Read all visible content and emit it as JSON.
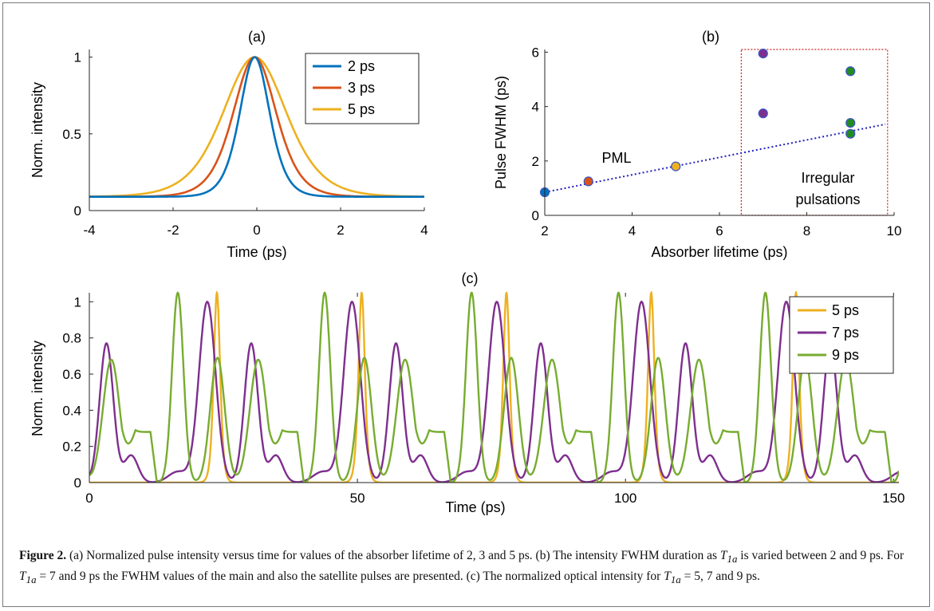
{
  "panels": {
    "a": {
      "label": "(a)",
      "xlabel": "Time (ps)",
      "ylabel": "Norm. intensity",
      "xlim": [
        -4,
        4
      ],
      "ylim": [
        0,
        1.05
      ],
      "xticks": [
        -4,
        -2,
        0,
        2,
        4
      ],
      "yticks": [
        0,
        0.5,
        1
      ],
      "ytick_labels": [
        "0",
        "0.5",
        "1"
      ],
      "legend": [
        {
          "name": "2 ps",
          "color": "#0072bd"
        },
        {
          "name": "3 ps",
          "color": "#d95319"
        },
        {
          "name": "5 ps",
          "color": "#edb120"
        }
      ]
    },
    "b": {
      "label": "(b)",
      "xlabel": "Absorber lifetime (ps)",
      "ylabel": "Pulse FWHM (ps)",
      "xlim": [
        2,
        10
      ],
      "ylim": [
        0,
        6.1
      ],
      "xticks": [
        2,
        4,
        6,
        8,
        10
      ],
      "yticks": [
        0,
        2,
        4,
        6
      ],
      "annotation_pml": "PML",
      "annotation_irregular": [
        "Irregular",
        "pulsations"
      ]
    },
    "c": {
      "label": "(c)",
      "xlabel": "Time (ps)",
      "ylabel": "Norm. intensity",
      "xlim": [
        0,
        151
      ],
      "ylim": [
        0,
        1.05
      ],
      "xticks": [
        0,
        50,
        100,
        150
      ],
      "yticks": [
        0,
        0.2,
        0.4,
        0.6,
        0.8,
        1
      ],
      "ytick_labels": [
        "0",
        "0.2",
        "0.4",
        "0.6",
        "0.8",
        "1"
      ],
      "legend": [
        {
          "name": "5 ps",
          "color": "#edb120"
        },
        {
          "name": "7 ps",
          "color": "#7e2f8e"
        },
        {
          "name": "9 ps",
          "color": "#77ac30"
        }
      ]
    }
  },
  "chart_data": [
    {
      "type": "line",
      "panel": "a",
      "x_range": [
        -4,
        4
      ],
      "series": [
        {
          "name": "2 ps",
          "color": "#0072bd",
          "fwhm": 0.85,
          "baseline": 0.09
        },
        {
          "name": "3 ps",
          "color": "#d95319",
          "fwhm": 1.22,
          "baseline": 0.09
        },
        {
          "name": "5 ps",
          "color": "#edb120",
          "fwhm": 1.8,
          "baseline": 0.09
        }
      ]
    },
    {
      "type": "scatter",
      "panel": "b",
      "points": [
        {
          "x": 2,
          "y": 0.85,
          "color": "#0072bd"
        },
        {
          "x": 3,
          "y": 1.25,
          "color": "#d95319"
        },
        {
          "x": 5,
          "y": 1.8,
          "color": "#edb120"
        },
        {
          "x": 7,
          "y": 5.95,
          "color": "#7e2f8e"
        },
        {
          "x": 7,
          "y": 3.75,
          "color": "#7e2f8e"
        },
        {
          "x": 9,
          "y": 5.3,
          "color": "#228b22"
        },
        {
          "x": 9,
          "y": 3.4,
          "color": "#228b22"
        },
        {
          "x": 9,
          "y": 3.0,
          "color": "#228b22"
        }
      ],
      "trend_line": {
        "x": [
          2,
          9.8
        ],
        "y": [
          0.85,
          3.35
        ],
        "color": "#1f1fbf"
      },
      "region": {
        "x": [
          6.5,
          9.85
        ],
        "y": [
          0,
          6.1
        ],
        "color": "#cc2020"
      }
    },
    {
      "type": "line",
      "panel": "c",
      "x_range": [
        0,
        151
      ],
      "series": [
        {
          "name": "5 ps",
          "color": "#edb120",
          "peaks": [
            23.8,
            50.8,
            77.8,
            104.8,
            131.8
          ]
        },
        {
          "name": "7 ps",
          "color": "#7e2f8e",
          "period": 27,
          "peaks_main": [
            22,
            49,
            76,
            103,
            130
          ],
          "peaks_satellite": [
            3,
            30,
            57,
            84,
            111,
            138
          ]
        },
        {
          "name": "9 ps",
          "color": "#77ac30",
          "period": 27.4,
          "peaks_main": [
            16.5,
            44,
            71.5,
            99,
            126.5
          ],
          "peaks_satellite": [
            4.5,
            24,
            31.5,
            59,
            86.5,
            113,
            140
          ]
        }
      ]
    }
  ],
  "caption": {
    "figure_label": "Figure 2.",
    "t1": " (a) Normalized pulse intensity versus time for values of the absorber lifetime of 2, 3 and 5 ps. (b) The intensity FWHM duration as ",
    "sym1": "T",
    "sub1": "1a",
    "t2": " is varied between 2 and 9 ps. For ",
    "sym2": "T",
    "sub2": "1a",
    "t3": " = 7 and 9 ps the FWHM values of the main and also the satellite pulses are presented. (c) The normalized optical intensity for ",
    "sym3": "T",
    "sub3": "1a",
    "t4": " = 5, 7 and 9 ps."
  }
}
